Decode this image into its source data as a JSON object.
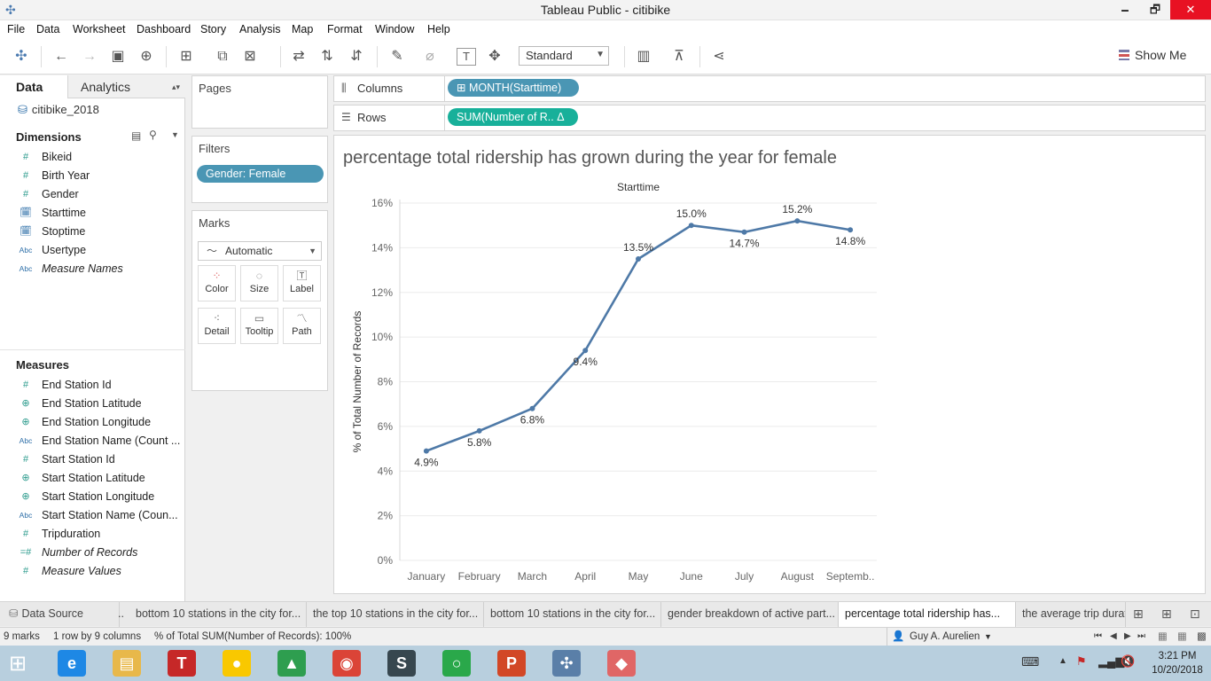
{
  "window": {
    "title": "Tableau Public - citibike",
    "minimize": "🗕",
    "maximize": "🗗",
    "close": "✕"
  },
  "menu": [
    "File",
    "Data",
    "Worksheet",
    "Dashboard",
    "Story",
    "Analysis",
    "Map",
    "Format",
    "Window",
    "Help"
  ],
  "toolbar": {
    "view_size": "Standard",
    "show_me": "Show Me"
  },
  "data_pane": {
    "tabs": {
      "data": "Data",
      "analytics": "Analytics"
    },
    "datasource": "citibike_2018",
    "dimensions_header": "Dimensions",
    "dimensions": [
      {
        "icon": "#",
        "type": "num",
        "label": "Bikeid",
        "italic": false
      },
      {
        "icon": "#",
        "type": "num",
        "label": "Birth Year",
        "italic": false
      },
      {
        "icon": "#",
        "type": "num",
        "label": "Gender",
        "italic": false
      },
      {
        "icon": "🗓",
        "type": "dt",
        "label": "Starttime",
        "italic": false
      },
      {
        "icon": "🗓",
        "type": "dt",
        "label": "Stoptime",
        "italic": false
      },
      {
        "icon": "Abc",
        "type": "abc",
        "label": "Usertype",
        "italic": false
      },
      {
        "icon": "Abc",
        "type": "abc",
        "label": "Measure Names",
        "italic": true
      }
    ],
    "measures_header": "Measures",
    "measures": [
      {
        "icon": "#",
        "type": "num",
        "label": "End Station Id",
        "italic": false
      },
      {
        "icon": "⊕",
        "type": "geo",
        "label": "End Station Latitude",
        "italic": false
      },
      {
        "icon": "⊕",
        "type": "geo",
        "label": "End Station Longitude",
        "italic": false
      },
      {
        "icon": "Abc",
        "type": "abc",
        "label": "End Station Name (Count ...",
        "italic": false
      },
      {
        "icon": "#",
        "type": "num",
        "label": "Start Station Id",
        "italic": false
      },
      {
        "icon": "⊕",
        "type": "geo",
        "label": "Start Station Latitude",
        "italic": false
      },
      {
        "icon": "⊕",
        "type": "geo",
        "label": "Start Station Longitude",
        "italic": false
      },
      {
        "icon": "Abc",
        "type": "abc",
        "label": "Start Station Name (Coun...",
        "italic": false
      },
      {
        "icon": "#",
        "type": "num",
        "label": "Tripduration",
        "italic": false
      },
      {
        "icon": "=#",
        "type": "num",
        "label": "Number of Records",
        "italic": true
      },
      {
        "icon": "#",
        "type": "num",
        "label": "Measure Values",
        "italic": true
      }
    ]
  },
  "cards": {
    "pages": "Pages",
    "filters": "Filters",
    "filter_pill": "Gender: Female",
    "marks": "Marks",
    "mark_type": "Automatic",
    "mark_buttons": [
      "Color",
      "Size",
      "Label",
      "Detail",
      "Tooltip",
      "Path"
    ]
  },
  "shelves": {
    "columns_label": "Columns",
    "columns_pill": "⊞ MONTH(Starttime)",
    "rows_label": "Rows",
    "rows_pill": "SUM(Number of R..  Δ"
  },
  "sheet": {
    "title": "percentage  total ridership has grown during the year for female"
  },
  "chart_data": {
    "type": "line",
    "title": "",
    "xlabel": "Starttime",
    "ylabel": "% of Total Number of Records",
    "categories": [
      "January",
      "February",
      "March",
      "April",
      "May",
      "June",
      "July",
      "August",
      "Septemb.."
    ],
    "values": [
      4.9,
      5.8,
      6.8,
      9.4,
      13.5,
      15.0,
      14.7,
      15.2,
      14.8
    ],
    "data_labels": [
      "4.9%",
      "5.8%",
      "6.8%",
      "9.4%",
      "13.5%",
      "15.0%",
      "14.7%",
      "15.2%",
      "14.8%"
    ],
    "label_side": [
      "below",
      "below",
      "below",
      "below",
      "above",
      "above",
      "below",
      "above",
      "below"
    ],
    "y_ticks": [
      "0%",
      "2%",
      "4%",
      "6%",
      "8%",
      "10%",
      "12%",
      "14%",
      "16%"
    ],
    "ylim": [
      0,
      16
    ],
    "grid": true,
    "line_color": "#4e79a7"
  },
  "tabs": [
    {
      "label": "Data Source",
      "active": false
    },
    {
      "label": "..",
      "active": false
    },
    {
      "label": "bottom 10 stations in the city for...",
      "active": false
    },
    {
      "label": "the top 10 stations in the city for...",
      "active": false
    },
    {
      "label": "bottom 10 stations in the city for...",
      "active": false
    },
    {
      "label": "gender breakdown of active part...",
      "active": false
    },
    {
      "label": "percentage  total ridership has...",
      "active": true
    },
    {
      "label": "the average trip durat",
      "active": false
    }
  ],
  "status": {
    "marks": "9 marks",
    "dims": "1 row by 9 columns",
    "sum": "% of Total SUM(Number of Records): 100%",
    "user": "Guy A. Aurelien"
  },
  "taskbar": {
    "time": "3:21 PM",
    "date": "10/20/2018",
    "apps": [
      {
        "name": "internet-explorer",
        "glyph": "e",
        "color": "#1e88e5"
      },
      {
        "name": "file-explorer",
        "glyph": "▤",
        "color": "#e8b84a"
      },
      {
        "name": "app-t",
        "glyph": "T",
        "color": "#c62828"
      },
      {
        "name": "maps-pin",
        "glyph": "●",
        "color": "#f9c800"
      },
      {
        "name": "google-drive",
        "glyph": "▲",
        "color": "#2e9e4f"
      },
      {
        "name": "chrome",
        "glyph": "◉",
        "color": "#db4437"
      },
      {
        "name": "app-s",
        "glyph": "S",
        "color": "#37474f"
      },
      {
        "name": "app-ring",
        "glyph": "○",
        "color": "#2aa84a"
      },
      {
        "name": "powerpoint",
        "glyph": "P",
        "color": "#d24726"
      },
      {
        "name": "tableau",
        "glyph": "✣",
        "color": "#5a7fa8"
      },
      {
        "name": "app-diamond",
        "glyph": "◆",
        "color": "#e06666"
      }
    ]
  }
}
